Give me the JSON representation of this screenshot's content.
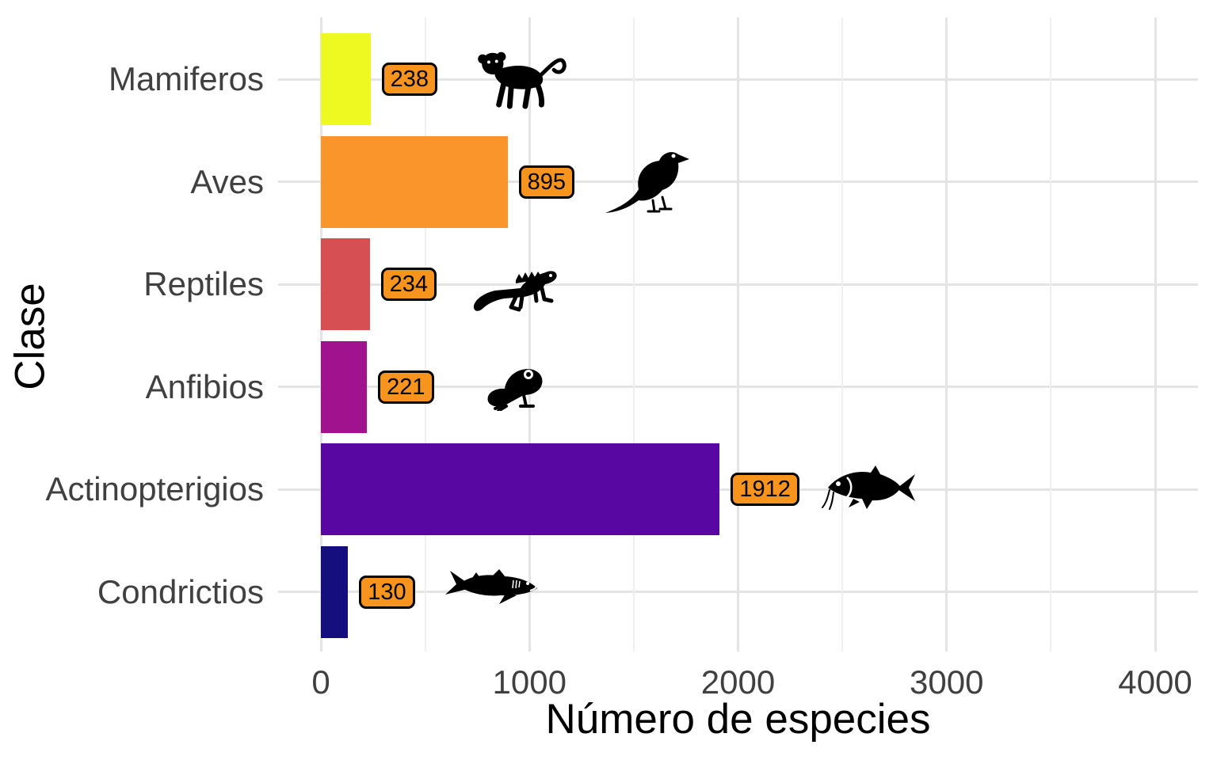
{
  "chart_data": {
    "type": "bar",
    "orientation": "horizontal",
    "xlabel": "Número de especies",
    "ylabel": "Clase",
    "categories": [
      "Mamiferos",
      "Aves",
      "Reptiles",
      "Anfibios",
      "Actinopterigios",
      "Condrictios"
    ],
    "values": [
      238,
      895,
      234,
      221,
      1912,
      130
    ],
    "value_labels": [
      "238",
      "895",
      "234",
      "221",
      "1912",
      "130"
    ],
    "bar_colors": [
      "#edf921",
      "#f9952b",
      "#d64f52",
      "#a1138e",
      "#5807a3",
      "#150e7f"
    ],
    "icons": [
      "monkey",
      "bird",
      "iguana",
      "frog",
      "fish",
      "shark"
    ],
    "xlim": [
      0,
      4000
    ],
    "x_major_ticks": [
      0,
      1000,
      2000,
      3000,
      4000
    ],
    "x_major_tick_labels": [
      "0",
      "1000",
      "2000",
      "3000",
      "4000"
    ],
    "x_minor_ticks": [
      500,
      1500,
      2500,
      3500
    ],
    "grid": "vertical major+minor, horizontal major at each category",
    "legend_position": "none",
    "value_label_fill": "#f7941e",
    "value_label_border": "#000000",
    "background_color": "#ffffff",
    "axis_text_color": "#404040",
    "axis_title_color": "#000000"
  }
}
